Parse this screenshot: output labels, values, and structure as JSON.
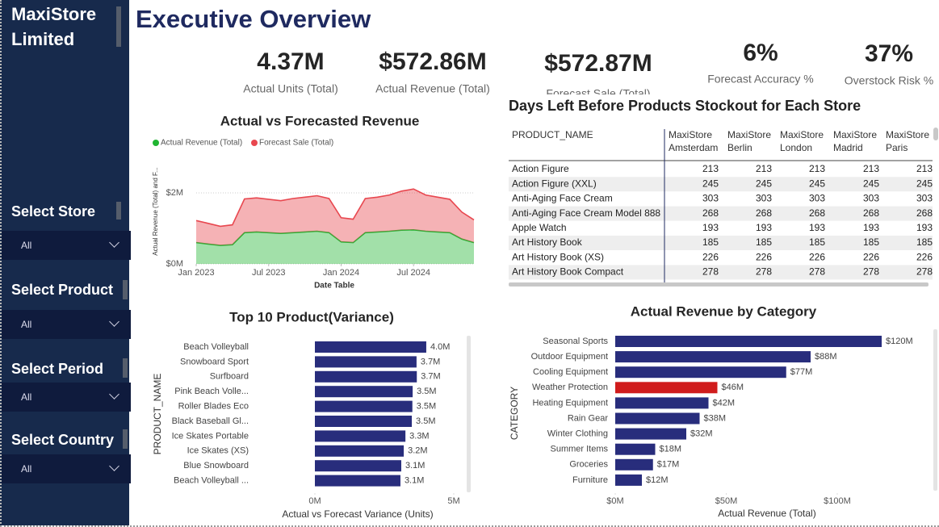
{
  "sidebar": {
    "company": "MaxiStore Limited",
    "filters": [
      {
        "label": "Select Store",
        "value": "All"
      },
      {
        "label": "Select Product",
        "value": "All"
      },
      {
        "label": "Select Period",
        "value": "All"
      },
      {
        "label": "Select Country",
        "value": "All"
      }
    ]
  },
  "header": {
    "title": "Executive Overview"
  },
  "kpis": [
    {
      "value": "4.37M",
      "label": "Actual Units (Total)"
    },
    {
      "value": "$572.86M",
      "label": "Actual Revenue (Total)"
    },
    {
      "value": "$572.87M",
      "label": "Forecast Sale (Total)"
    },
    {
      "value": "6%",
      "label": "Forecast Accuracy %"
    },
    {
      "value": "37%",
      "label": "Overstock Risk %"
    }
  ],
  "table": {
    "title": "Days Left Before Products Stockout for Each Store",
    "header": [
      "PRODUCT_NAME",
      [
        "MaxiStore",
        "Amsterdam"
      ],
      [
        "MaxiStore",
        "Berlin"
      ],
      [
        "MaxiStore",
        "London"
      ],
      [
        "MaxiStore",
        "Madrid"
      ],
      [
        "MaxiStore",
        "Paris"
      ]
    ],
    "rows": [
      [
        "Action Figure",
        213,
        213,
        213,
        213,
        213
      ],
      [
        "Action Figure (XXL)",
        245,
        245,
        245,
        245,
        245
      ],
      [
        "Anti-Aging Face Cream",
        303,
        303,
        303,
        303,
        303
      ],
      [
        "Anti-Aging Face Cream Model 888",
        268,
        268,
        268,
        268,
        268
      ],
      [
        "Apple Watch",
        193,
        193,
        193,
        193,
        193
      ],
      [
        "Art History Book",
        185,
        185,
        185,
        185,
        185
      ],
      [
        "Art History Book (XS)",
        226,
        226,
        226,
        226,
        226
      ],
      [
        "Art History Book Compact",
        278,
        278,
        278,
        278,
        278
      ]
    ]
  },
  "chart_data": [
    {
      "type": "area",
      "stacked": true,
      "title": "Actual vs Forecasted Revenue",
      "xlabel": "Date Table",
      "ylabel": "Actual Revenue (Total) and F...",
      "x": [
        "2023-01",
        "2023-02",
        "2023-03",
        "2023-04",
        "2023-05",
        "2023-06",
        "2023-07",
        "2023-08",
        "2023-09",
        "2023-10",
        "2023-11",
        "2023-12",
        "2024-01",
        "2024-02",
        "2024-03",
        "2024-04",
        "2024-05",
        "2024-06",
        "2024-07",
        "2024-08",
        "2024-09",
        "2024-10",
        "2024-11",
        "2024-12"
      ],
      "series": [
        {
          "name": "Actual Revenue (Total)",
          "color": "#21b532",
          "values": [
            600000,
            560000,
            520000,
            540000,
            880000,
            900000,
            880000,
            860000,
            880000,
            900000,
            920000,
            880000,
            620000,
            600000,
            880000,
            900000,
            920000,
            950000,
            960000,
            920000,
            900000,
            880000,
            700000,
            600000
          ]
        },
        {
          "name": "Forecast Sale (Total)",
          "color": "#e8474f",
          "values": [
            620000,
            580000,
            540000,
            560000,
            950000,
            960000,
            940000,
            920000,
            960000,
            980000,
            1000000,
            960000,
            680000,
            660000,
            960000,
            980000,
            1020000,
            1100000,
            1150000,
            1020000,
            980000,
            940000,
            760000,
            640000
          ]
        }
      ],
      "xlim": [
        "2023-01",
        "2024-12"
      ],
      "xticks": [
        {
          "value": "2023-01",
          "label": "Jan 2023"
        },
        {
          "value": "2023-07",
          "label": "Jul 2023"
        },
        {
          "value": "2024-01",
          "label": "Jan 2024"
        },
        {
          "value": "2024-07",
          "label": "Jul 2024"
        }
      ],
      "ylim": [
        0,
        3000000
      ],
      "yticks": [
        {
          "value": 0,
          "label": "$0M"
        },
        {
          "value": 2000000,
          "label": "$2M"
        }
      ],
      "grid": true
    },
    {
      "type": "bar",
      "orientation": "horizontal",
      "title": "Top 10 Product(Variance)",
      "xlabel": "Actual vs Forecast Variance (Units)",
      "ylabel": "PRODUCT_NAME",
      "color": "#282d7c",
      "categories": [
        "Beach Volleyball",
        "Snowboard Sport",
        "Surfboard",
        "Pink Beach Volle...",
        "Roller Blades Eco",
        "Black Baseball Gl...",
        "Ice Skates Portable",
        "Ice Skates (XS)",
        "Blue Snowboard",
        "Beach Volleyball ..."
      ],
      "values": [
        4010000,
        3660000,
        3670000,
        3520000,
        3510000,
        3490000,
        3260000,
        3200000,
        3110000,
        3080000
      ],
      "value_labels": [
        "4.0M",
        "3.7M",
        "3.7M",
        "3.5M",
        "3.5M",
        "3.5M",
        "3.3M",
        "3.2M",
        "3.1M",
        "3.1M"
      ],
      "xlim": [
        0,
        5000000
      ],
      "xticks": [
        {
          "value": 0,
          "label": "0M"
        },
        {
          "value": 5000000,
          "label": "5M"
        }
      ]
    },
    {
      "type": "bar",
      "orientation": "horizontal",
      "title": "Actual Revenue by Category",
      "xlabel": "Actual Revenue (Total)",
      "ylabel": "CATEGORY",
      "categories": [
        "Seasonal Sports",
        "Outdoor Equipment",
        "Cooling Equipment",
        "Weather Protection",
        "Heating Equipment",
        "Rain Gear",
        "Winter Clothing",
        "Summer Items",
        "Groceries",
        "Furniture"
      ],
      "values": [
        120000000,
        88000000,
        77000000,
        46000000,
        42000000,
        38000000,
        32000000,
        18000000,
        17000000,
        12000000
      ],
      "value_labels": [
        "$120M",
        "$88M",
        "$77M",
        "$46M",
        "$42M",
        "$38M",
        "$32M",
        "$18M",
        "$17M",
        "$12M"
      ],
      "colors": [
        "#282d7c",
        "#282d7c",
        "#282d7c",
        "#d01c1c",
        "#282d7c",
        "#282d7c",
        "#282d7c",
        "#282d7c",
        "#282d7c",
        "#282d7c"
      ],
      "xlim": [
        0,
        140000000
      ],
      "xticks": [
        {
          "value": 0,
          "label": "$0M"
        },
        {
          "value": 50000000,
          "label": "$50M"
        },
        {
          "value": 100000000,
          "label": "$100M"
        }
      ]
    }
  ]
}
